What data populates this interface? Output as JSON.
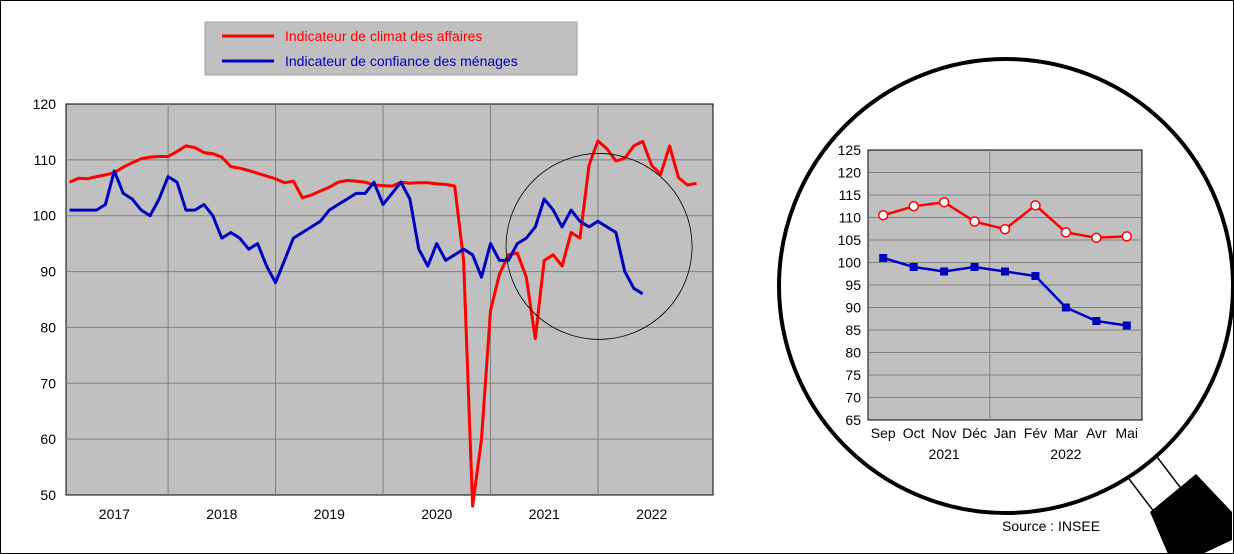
{
  "legend": {
    "position": "top-center",
    "items": [
      {
        "label": "Indicateur de climat des affaires",
        "color": "#ff0000"
      },
      {
        "label": "Indicateur de confiance des ménages",
        "color": "#0000c0"
      }
    ]
  },
  "source_note": "Source : INSEE",
  "colors": {
    "plot_bg": "#c0c0c0",
    "legend_bg": "#c0c0c0",
    "business": "#ff0000",
    "household": "#0000c0",
    "grid": "#808080"
  },
  "chart_data": [
    {
      "type": "line",
      "grid": true,
      "ylim": [
        50,
        120
      ],
      "y_ticks": [
        120,
        110,
        100,
        90,
        80,
        70,
        60,
        50
      ],
      "xlim": [
        2016.55,
        2022.57
      ],
      "x_ticks": [
        {
          "label": "2017",
          "x": 2017
        },
        {
          "label": "2018",
          "x": 2018
        },
        {
          "label": "2019",
          "x": 2019
        },
        {
          "label": "2020",
          "x": 2020
        },
        {
          "label": "2021",
          "x": 2021
        },
        {
          "label": "2022",
          "x": 2022
        }
      ],
      "year_separators": [
        2017.5,
        2018.5,
        2019.5,
        2020.5,
        2021.5
      ],
      "x_start": 2016.583,
      "x_step": 0.08333,
      "series": [
        {
          "name": "Indicateur de climat des affaires",
          "color": "#ff0000",
          "values": [
            106,
            106.7,
            106.6,
            107,
            107.3,
            107.7,
            108.7,
            109.5,
            110.2,
            110.5,
            110.6,
            110.6,
            111.5,
            112.5,
            112.2,
            111.3,
            111.1,
            110.5,
            108.8,
            108.5,
            108.1,
            107.6,
            107.1,
            106.6,
            105.9,
            106.2,
            103.2,
            103.7,
            104.4,
            105.1,
            106,
            106.3,
            106.2,
            106,
            105.5,
            105.4,
            105.3,
            106,
            105.8,
            105.9,
            105.9,
            105.7,
            105.6,
            105.3,
            92,
            48,
            60,
            83,
            89.5,
            93,
            93.3,
            89,
            78,
            92,
            93,
            91,
            97,
            96,
            109,
            113.4,
            112,
            109.8,
            110.3,
            112.5,
            113.3,
            109,
            107.4,
            112.5,
            106.8,
            105.5,
            105.8
          ]
        },
        {
          "name": "Indicateur de confiance des ménages",
          "color": "#0000c0",
          "values": [
            101,
            101,
            101,
            101,
            102,
            108,
            104,
            103,
            101,
            100,
            103,
            107,
            106,
            101,
            101,
            102,
            100,
            96,
            97,
            96,
            94,
            95,
            91,
            88,
            92,
            96,
            97,
            98,
            99,
            101,
            102,
            103,
            104,
            104,
            106,
            102,
            104,
            106,
            103,
            94,
            91,
            95,
            92,
            93,
            94,
            93,
            89,
            95,
            92,
            92,
            95,
            96,
            98,
            103,
            101,
            98,
            101,
            99,
            98,
            99,
            98,
            97,
            90,
            87,
            86
          ]
        }
      ],
      "callout": {
        "center_x": 2021.51,
        "center_y": 94.5
      }
    },
    {
      "type": "line",
      "grid": true,
      "ylim": [
        65,
        125
      ],
      "y_ticks": [
        125,
        120,
        115,
        110,
        105,
        100,
        95,
        90,
        85,
        80,
        75,
        70,
        65
      ],
      "categories": [
        "Sep",
        "Oct",
        "Nov",
        "Déc",
        "Jan",
        "Fév",
        "Mar",
        "Avr",
        "Mai"
      ],
      "year_labels": [
        {
          "label": "2021",
          "at": "Nov"
        },
        {
          "label": "2022",
          "at": "Mar"
        }
      ],
      "year_separator_after": "Déc",
      "series": [
        {
          "name": "Indicateur de climat des affaires",
          "color": "#ff0000",
          "marker": "circle",
          "values": [
            110.5,
            112.5,
            113.4,
            109.1,
            107.4,
            112.7,
            106.7,
            105.5,
            105.8
          ]
        },
        {
          "name": "Indicateur de confiance des ménages",
          "color": "#0000c0",
          "marker": "square",
          "values": [
            101,
            99,
            98,
            99,
            98,
            97,
            90,
            87,
            86
          ]
        }
      ]
    }
  ]
}
